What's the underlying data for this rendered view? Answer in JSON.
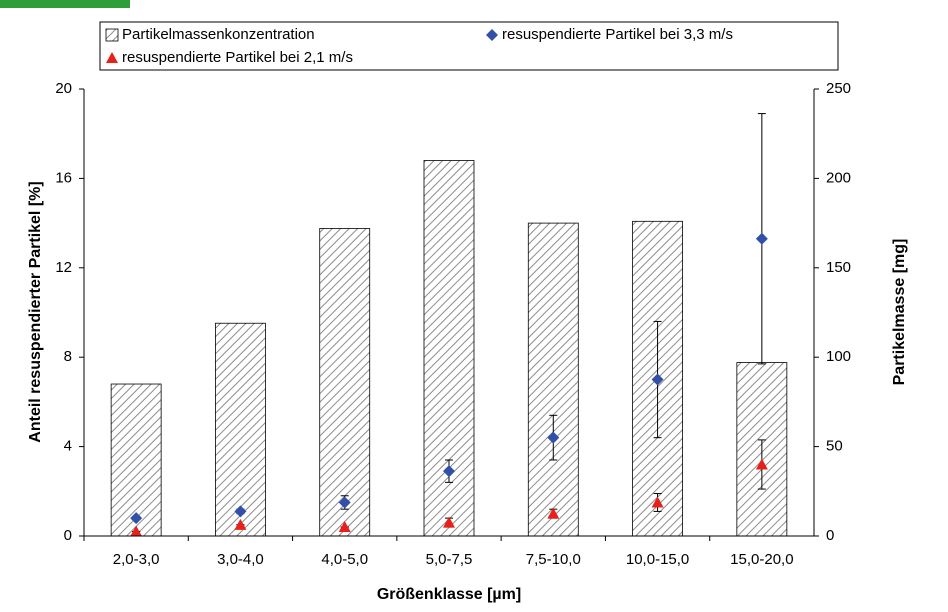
{
  "chart_data": {
    "type": "bar",
    "categories": [
      "2,0-3,0",
      "3,0-4,0",
      "4,0-5,0",
      "5,0-7,5",
      "7,5-10,0",
      "10,0-15,0",
      "15,0-20,0"
    ],
    "series": [
      {
        "name": "Partikelmassenkonzentration",
        "type": "bar",
        "axis": "y2",
        "color": "#8c8c8c",
        "values": [
          85,
          119,
          172,
          210,
          175,
          176,
          97
        ]
      },
      {
        "name": "resuspendierte Partikel bei 3,3 m/s",
        "type": "scatter",
        "marker": "diamond",
        "color": "#3350a8",
        "values": [
          0.8,
          1.1,
          1.5,
          2.9,
          4.4,
          7.0,
          13.3
        ],
        "errors": [
          0,
          0.1,
          0.3,
          0.5,
          1.0,
          2.6,
          5.6
        ]
      },
      {
        "name": "resuspendierte Partikel bei 2,1 m/s",
        "type": "scatter",
        "marker": "triangle",
        "color": "#e8201c",
        "values": [
          0.2,
          0.5,
          0.4,
          0.6,
          1.0,
          1.5,
          3.2
        ],
        "errors": [
          0,
          0,
          0,
          0.2,
          0.2,
          0.4,
          1.1
        ]
      }
    ],
    "x_label": "Größenklasse [µm]",
    "y_label": "Anteil resuspendierter Partikel [%]",
    "y2_label": "Partikelmasse [mg]",
    "ylim": [
      0,
      20
    ],
    "yticks": [
      0,
      4,
      8,
      12,
      16,
      20
    ],
    "y2lim": [
      0,
      250
    ],
    "y2ticks": [
      0,
      50,
      100,
      150,
      200,
      250
    ],
    "legend": "top",
    "grid": false
  }
}
